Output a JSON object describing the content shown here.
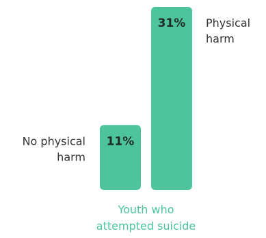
{
  "chart_data": {
    "type": "bar",
    "categories": [
      "No physical harm",
      "Physical harm"
    ],
    "category_label_lines": [
      [
        "No physical",
        "harm"
      ],
      [
        "Physical",
        "harm"
      ]
    ],
    "values": [
      11,
      31
    ],
    "value_labels": [
      "11%",
      "31%"
    ],
    "unit": "%",
    "xlabel_lines": [
      "Youth who",
      "attempted suicide"
    ],
    "ylim": [
      0,
      31
    ],
    "grid": false,
    "legend": "none",
    "colors": {
      "bar": "#4dc49b",
      "xlabel": "#4dc49b",
      "value_text": "#1f2a2a",
      "category_text": "#333333"
    }
  }
}
